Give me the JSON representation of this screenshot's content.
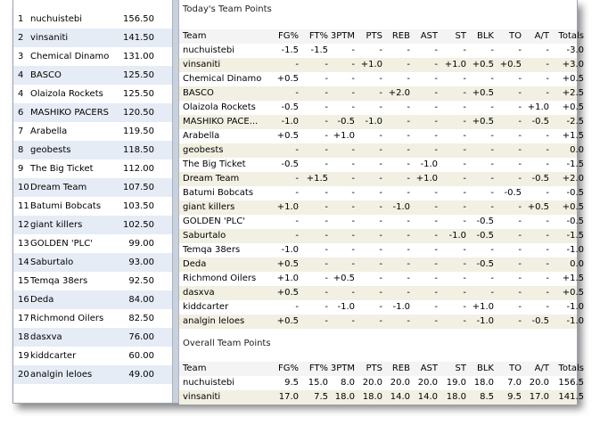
{
  "standings": {
    "rows": [
      [
        "1",
        "nuchuistebi",
        "156.50"
      ],
      [
        "2",
        "vinsaniti",
        "141.50"
      ],
      [
        "3",
        "Chemical Dinamo",
        "131.00"
      ],
      [
        "4",
        "BASCO",
        "125.50"
      ],
      [
        "4",
        "Olaizola Rockets",
        "125.50"
      ],
      [
        "6",
        "MASHIKO PACERS",
        "120.50"
      ],
      [
        "7",
        "Arabella",
        "119.50"
      ],
      [
        "8",
        "geobests",
        "118.50"
      ],
      [
        "9",
        "The Big Ticket",
        "112.00"
      ],
      [
        "10",
        "Dream Team",
        "107.50"
      ],
      [
        "11",
        "Batumi Bobcats",
        "103.50"
      ],
      [
        "12",
        "giant killers",
        "102.50"
      ],
      [
        "13",
        "GOLDEN 'PLC'",
        "99.00"
      ],
      [
        "14",
        "Saburtalo",
        "93.00"
      ],
      [
        "15",
        "Temqa 38ers",
        "92.50"
      ],
      [
        "16",
        "Deda",
        "84.00"
      ],
      [
        "17",
        "Richmond Oilers",
        "82.50"
      ],
      [
        "18",
        "dasxva",
        "76.00"
      ],
      [
        "19",
        "kiddcarter",
        "60.00"
      ],
      [
        "20",
        "analgin leloes",
        "49.00"
      ]
    ]
  },
  "today": {
    "title": "Today's Team Points",
    "columns": [
      "Team",
      "FG%",
      "FT%",
      "3PTM",
      "PTS",
      "REB",
      "AST",
      "ST",
      "BLK",
      "TO",
      "A/T",
      "Totals"
    ],
    "rows": [
      [
        "nuchuistebi",
        "-1.5",
        "-1.5",
        "-",
        "-",
        "-",
        "-",
        "-",
        "-",
        "-",
        "-",
        "-3.0"
      ],
      [
        "vinsaniti",
        "-",
        "-",
        "-",
        "+1.0",
        "-",
        "-",
        "+1.0",
        "+0.5",
        "+0.5",
        "-",
        "+3.0"
      ],
      [
        "Chemical Dinamo",
        "+0.5",
        "-",
        "-",
        "-",
        "-",
        "-",
        "-",
        "-",
        "-",
        "-",
        "+0.5"
      ],
      [
        "BASCO",
        "-",
        "-",
        "-",
        "-",
        "+2.0",
        "-",
        "-",
        "+0.5",
        "-",
        "-",
        "+2.5"
      ],
      [
        "Olaizola Rockets",
        "-0.5",
        "-",
        "-",
        "-",
        "-",
        "-",
        "-",
        "-",
        "-",
        "+1.0",
        "+0.5"
      ],
      [
        "MASHIKO PACE...",
        "-1.0",
        "-",
        "-0.5",
        "-1.0",
        "-",
        "-",
        "-",
        "+0.5",
        "-",
        "-0.5",
        "-2.5"
      ],
      [
        "Arabella",
        "+0.5",
        "-",
        "+1.0",
        "-",
        "-",
        "-",
        "-",
        "-",
        "-",
        "-",
        "+1.5"
      ],
      [
        "geobests",
        "-",
        "-",
        "-",
        "-",
        "-",
        "-",
        "-",
        "-",
        "-",
        "-",
        "0.0"
      ],
      [
        "The Big Ticket",
        "-0.5",
        "-",
        "-",
        "-",
        "-",
        "-1.0",
        "-",
        "-",
        "-",
        "-",
        "-1.5"
      ],
      [
        "Dream Team",
        "-",
        "+1.5",
        "-",
        "-",
        "-",
        "+1.0",
        "-",
        "-",
        "-",
        "-0.5",
        "+2.0"
      ],
      [
        "Batumi Bobcats",
        "-",
        "-",
        "-",
        "-",
        "-",
        "-",
        "-",
        "-",
        "-0.5",
        "-",
        "-0.5"
      ],
      [
        "giant killers",
        "+1.0",
        "-",
        "-",
        "-",
        "-1.0",
        "-",
        "-",
        "-",
        "-",
        "+0.5",
        "+0.5"
      ],
      [
        "GOLDEN 'PLC'",
        "-",
        "-",
        "-",
        "-",
        "-",
        "-",
        "-",
        "-0.5",
        "-",
        "-",
        "-0.5"
      ],
      [
        "Saburtalo",
        "-",
        "-",
        "-",
        "-",
        "-",
        "-",
        "-1.0",
        "-0.5",
        "-",
        "-",
        "-1.5"
      ],
      [
        "Temqa 38ers",
        "-1.0",
        "-",
        "-",
        "-",
        "-",
        "-",
        "-",
        "-",
        "-",
        "-",
        "-1.0"
      ],
      [
        "Deda",
        "+0.5",
        "-",
        "-",
        "-",
        "-",
        "-",
        "-",
        "-0.5",
        "-",
        "-",
        "0.0"
      ],
      [
        "Richmond Oilers",
        "+1.0",
        "-",
        "+0.5",
        "-",
        "-",
        "-",
        "-",
        "-",
        "-",
        "-",
        "+1.5"
      ],
      [
        "dasxva",
        "+0.5",
        "-",
        "-",
        "-",
        "-",
        "-",
        "-",
        "-",
        "-",
        "-",
        "+0.5"
      ],
      [
        "kiddcarter",
        "-",
        "-",
        "-1.0",
        "-",
        "-1.0",
        "-",
        "-",
        "+1.0",
        "-",
        "-",
        "-1.0"
      ],
      [
        "analgin leloes",
        "+0.5",
        "-",
        "-",
        "-",
        "-",
        "-",
        "-",
        "-1.0",
        "-",
        "-0.5",
        "-1.0"
      ]
    ]
  },
  "overall": {
    "title": "Overall Team Points",
    "columns": [
      "Team",
      "FG%",
      "FT%",
      "3PTM",
      "PTS",
      "REB",
      "AST",
      "ST",
      "BLK",
      "TO",
      "A/T",
      "Totals"
    ],
    "rows": [
      [
        "nuchuistebi",
        "9.5",
        "15.0",
        "8.0",
        "20.0",
        "20.0",
        "20.0",
        "19.0",
        "18.0",
        "7.0",
        "20.0",
        "156.5"
      ],
      [
        "vinsaniti",
        "17.0",
        "7.5",
        "18.0",
        "18.0",
        "14.0",
        "14.0",
        "18.0",
        "8.5",
        "9.5",
        "17.0",
        "141.5"
      ]
    ]
  }
}
